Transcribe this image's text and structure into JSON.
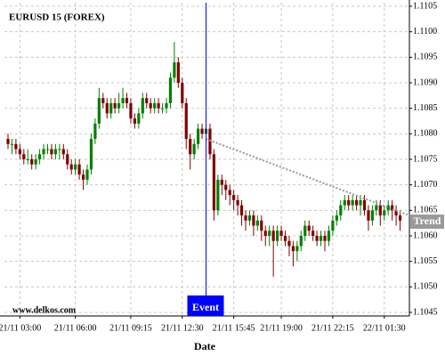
{
  "chart_data": {
    "type": "candlestick",
    "title": "EURUSD 15 (FOREX)",
    "x_label": "Date",
    "watermark": "www.delkos.com",
    "categories": [
      null,
      null,
      null,
      "21/11 03:00",
      null,
      null,
      null,
      null,
      null,
      null,
      null,
      null,
      null,
      null,
      null,
      null,
      null,
      "21/11 06:00",
      null,
      null,
      null,
      null,
      null,
      null,
      null,
      null,
      null,
      null,
      null,
      null,
      null,
      "21/11 09:15",
      null,
      null,
      null,
      null,
      null,
      null,
      null,
      null,
      null,
      null,
      null,
      null,
      "21/11 12:30",
      null,
      null,
      null,
      null,
      null,
      null,
      null,
      null,
      null,
      null,
      null,
      null,
      "21/11 15:45",
      null,
      null,
      null,
      null,
      null,
      null,
      null,
      null,
      null,
      null,
      null,
      "21/11 19:00",
      null,
      null,
      null,
      null,
      null,
      null,
      null,
      null,
      null,
      null,
      null,
      null,
      "21/11 22:15",
      null,
      null,
      null,
      null,
      null,
      null,
      null,
      null,
      null,
      null,
      null,
      null,
      "22/11 01:30",
      null,
      null,
      null,
      null
    ],
    "ohlc": [
      [
        1.1079,
        1.108,
        1.1077,
        1.1078
      ],
      [
        1.1078,
        1.1079,
        1.1076,
        1.1078
      ],
      [
        1.1078,
        1.1079,
        1.1076,
        1.1077
      ],
      [
        1.1077,
        1.1078,
        1.1075,
        1.1076
      ],
      [
        1.1076,
        1.1077,
        1.1074,
        1.1075
      ],
      [
        1.1075,
        1.1077,
        1.1074,
        1.1075
      ],
      [
        1.1075,
        1.1076,
        1.1073,
        1.1074
      ],
      [
        1.1074,
        1.1076,
        1.1073,
        1.1075
      ],
      [
        1.1075,
        1.1077,
        1.1074,
        1.1076
      ],
      [
        1.1076,
        1.1078,
        1.1075,
        1.1077
      ],
      [
        1.1077,
        1.1078,
        1.1076,
        1.1077
      ],
      [
        1.1077,
        1.1078,
        1.1075,
        1.1076
      ],
      [
        1.1076,
        1.1078,
        1.1075,
        1.1077
      ],
      [
        1.1077,
        1.1078,
        1.1075,
        1.1077
      ],
      [
        1.1077,
        1.1078,
        1.1075,
        1.1076
      ],
      [
        1.1076,
        1.1077,
        1.1073,
        1.1074
      ],
      [
        1.1074,
        1.1075,
        1.1072,
        1.1073
      ],
      [
        1.1073,
        1.1075,
        1.1072,
        1.1074
      ],
      [
        1.1074,
        1.1075,
        1.1071,
        1.1072
      ],
      [
        1.1072,
        1.1073,
        1.1069,
        1.1071
      ],
      [
        1.1071,
        1.1074,
        1.107,
        1.1073
      ],
      [
        1.1073,
        1.108,
        1.1072,
        1.1079
      ],
      [
        1.1079,
        1.1083,
        1.1078,
        1.1082
      ],
      [
        1.1082,
        1.1089,
        1.1081,
        1.1087
      ],
      [
        1.1087,
        1.1088,
        1.1085,
        1.1086
      ],
      [
        1.1086,
        1.1087,
        1.1083,
        1.1084
      ],
      [
        1.1084,
        1.1087,
        1.1083,
        1.1086
      ],
      [
        1.1086,
        1.1087,
        1.1084,
        1.1085
      ],
      [
        1.1085,
        1.1088,
        1.1084,
        1.1086
      ],
      [
        1.1086,
        1.1089,
        1.1085,
        1.1087
      ],
      [
        1.1087,
        1.1088,
        1.1085,
        1.1086
      ],
      [
        1.1086,
        1.1087,
        1.1082,
        1.1083
      ],
      [
        1.1083,
        1.1084,
        1.1081,
        1.1082
      ],
      [
        1.1082,
        1.1085,
        1.1081,
        1.1084
      ],
      [
        1.1084,
        1.1088,
        1.1083,
        1.1087
      ],
      [
        1.1087,
        1.1088,
        1.1085,
        1.1086
      ],
      [
        1.1086,
        1.1087,
        1.1084,
        1.1085
      ],
      [
        1.1085,
        1.1087,
        1.1084,
        1.1086
      ],
      [
        1.1086,
        1.1087,
        1.1084,
        1.1085
      ],
      [
        1.1085,
        1.1086,
        1.1084,
        1.1085
      ],
      [
        1.1085,
        1.1087,
        1.1084,
        1.1086
      ],
      [
        1.1086,
        1.1092,
        1.1085,
        1.1091
      ],
      [
        1.1091,
        1.1098,
        1.109,
        1.1094
      ],
      [
        1.1094,
        1.1095,
        1.1089,
        1.109
      ],
      [
        1.109,
        1.1091,
        1.1085,
        1.1086
      ],
      [
        1.1086,
        1.1087,
        1.1077,
        1.1079
      ],
      [
        1.1079,
        1.108,
        1.1073,
        1.1076
      ],
      [
        1.1076,
        1.1079,
        1.1075,
        1.1078
      ],
      [
        1.1078,
        1.1082,
        1.1077,
        1.1081
      ],
      [
        1.1081,
        1.1082,
        1.1079,
        1.108
      ],
      [
        1.108,
        1.1082,
        1.1079,
        1.1081
      ],
      [
        1.1081,
        1.1082,
        1.1075,
        1.1076
      ],
      [
        1.1076,
        1.1077,
        1.1063,
        1.1065
      ],
      [
        1.1065,
        1.1072,
        1.1064,
        1.1071
      ],
      [
        1.1071,
        1.1072,
        1.1068,
        1.107
      ],
      [
        1.107,
        1.1071,
        1.1067,
        1.1069
      ],
      [
        1.1069,
        1.107,
        1.1066,
        1.1068
      ],
      [
        1.1068,
        1.1069,
        1.1065,
        1.1067
      ],
      [
        1.1067,
        1.1068,
        1.1064,
        1.1066
      ],
      [
        1.1066,
        1.1067,
        1.1062,
        1.1064
      ],
      [
        1.1064,
        1.1065,
        1.1061,
        1.1063
      ],
      [
        1.1063,
        1.1065,
        1.1062,
        1.1064
      ],
      [
        1.1064,
        1.1065,
        1.106,
        1.1062
      ],
      [
        1.1062,
        1.1064,
        1.1061,
        1.1063
      ],
      [
        1.1063,
        1.1064,
        1.1059,
        1.1061
      ],
      [
        1.1061,
        1.1062,
        1.1058,
        1.106
      ],
      [
        1.106,
        1.1062,
        1.1058,
        1.1061
      ],
      [
        1.1061,
        1.1062,
        1.1052,
        1.1059
      ],
      [
        1.1059,
        1.1062,
        1.1058,
        1.1061
      ],
      [
        1.1061,
        1.1062,
        1.1059,
        1.106
      ],
      [
        1.106,
        1.1061,
        1.1058,
        1.1059
      ],
      [
        1.1059,
        1.106,
        1.1056,
        1.1058
      ],
      [
        1.1058,
        1.1059,
        1.1054,
        1.1057
      ],
      [
        1.1057,
        1.1059,
        1.1055,
        1.1058
      ],
      [
        1.1058,
        1.1061,
        1.1057,
        1.106
      ],
      [
        1.106,
        1.1063,
        1.1059,
        1.1062
      ],
      [
        1.1062,
        1.1063,
        1.106,
        1.1061
      ],
      [
        1.1061,
        1.1062,
        1.1059,
        1.106
      ],
      [
        1.106,
        1.1061,
        1.1058,
        1.1059
      ],
      [
        1.1059,
        1.1061,
        1.1058,
        1.106
      ],
      [
        1.106,
        1.1061,
        1.1057,
        1.1059
      ],
      [
        1.1059,
        1.1062,
        1.1058,
        1.1061
      ],
      [
        1.1061,
        1.1064,
        1.106,
        1.1063
      ],
      [
        1.1063,
        1.1065,
        1.1062,
        1.1064
      ],
      [
        1.1064,
        1.1067,
        1.1063,
        1.1066
      ],
      [
        1.1066,
        1.1068,
        1.1065,
        1.1067
      ],
      [
        1.1067,
        1.1068,
        1.1065,
        1.1066
      ],
      [
        1.1066,
        1.1068,
        1.1065,
        1.1067
      ],
      [
        1.1067,
        1.1068,
        1.1065,
        1.1066
      ],
      [
        1.1066,
        1.1068,
        1.1064,
        1.1067
      ],
      [
        1.1067,
        1.1068,
        1.1064,
        1.1065
      ],
      [
        1.1065,
        1.1066,
        1.1061,
        1.1063
      ],
      [
        1.1063,
        1.1066,
        1.1062,
        1.1065
      ],
      [
        1.1065,
        1.1067,
        1.1064,
        1.1066
      ],
      [
        1.1066,
        1.1067,
        1.1062,
        1.1064
      ],
      [
        1.1064,
        1.1066,
        1.1063,
        1.1065
      ],
      [
        1.1065,
        1.1067,
        1.1064,
        1.1066
      ],
      [
        1.1066,
        1.1067,
        1.1063,
        1.1065
      ],
      [
        1.1065,
        1.1066,
        1.1062,
        1.1064
      ],
      [
        1.1064,
        1.1065,
        1.1061,
        1.1063
      ]
    ],
    "up_color": "#008000",
    "down_color": "#800000",
    "ylim": [
      1.1045,
      1.1105
    ],
    "yticks": [
      1.1045,
      {
        "value": 1.105,
        "label": "1.1050"
      },
      1.1055,
      {
        "value": 1.106,
        "label": "1.1060"
      },
      1.1065,
      {
        "value": 1.107,
        "label": "1.1070"
      },
      1.1075,
      {
        "value": 1.108,
        "label": "1.1080"
      },
      1.1085,
      {
        "value": 1.109,
        "label": "1.1090"
      },
      1.1095,
      {
        "value": 1.11,
        "label": "1.1100"
      },
      1.1105
    ],
    "grid": true,
    "trend": {
      "label": "Trend",
      "values": [
        1.1079,
        1.1064
      ],
      "color": "#999999"
    },
    "event": {
      "label": "Event",
      "color": "#0000ff"
    }
  }
}
